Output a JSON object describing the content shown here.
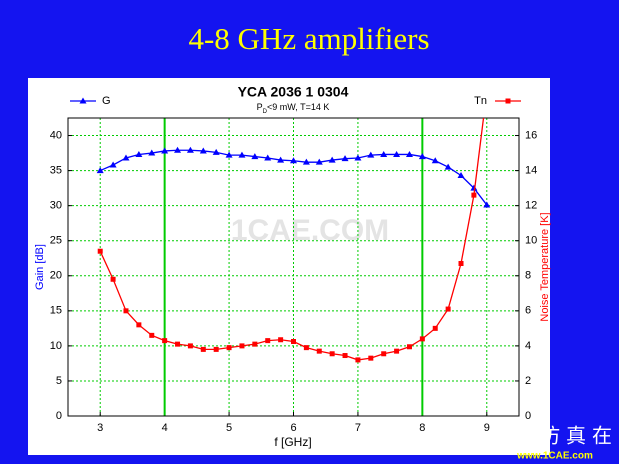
{
  "slide_title": "4-8 GHz amplifiers",
  "watermark": "1CAE.COM",
  "footer_brand": "仿真在线",
  "footer_url": "www.1CAE.com",
  "chart_data": {
    "type": "line",
    "title": "YCA 2036 1 0304",
    "subtitle": {
      "parts": [
        "P",
        "D",
        "<9 mW, T=14 K"
      ]
    },
    "xlabel": "f [GHz]",
    "ylabel": "Gain [dB]",
    "y2label": "Noise Temperature [K]",
    "x": [
      3,
      3.2,
      3.4,
      3.6,
      3.8,
      4,
      4.2,
      4.4,
      4.6,
      4.8,
      5,
      5.2,
      5.4,
      5.6,
      5.8,
      6,
      6.2,
      6.4,
      6.6,
      6.8,
      7,
      7.2,
      7.4,
      7.6,
      7.8,
      8,
      8.2,
      8.4,
      8.6,
      8.8,
      9
    ],
    "series": [
      {
        "name": "G",
        "color": "#0000ff",
        "marker": "triangle",
        "axis": "y",
        "values": [
          35,
          35.8,
          36.8,
          37.3,
          37.5,
          37.8,
          37.9,
          37.9,
          37.8,
          37.6,
          37.2,
          37.2,
          37.0,
          36.8,
          36.5,
          36.4,
          36.2,
          36.2,
          36.5,
          36.7,
          36.8,
          37.2,
          37.3,
          37.3,
          37.3,
          37.0,
          36.4,
          35.5,
          34.3,
          32.5,
          30.1
        ]
      },
      {
        "name": "Tn",
        "color": "#ff0000",
        "marker": "square",
        "axis": "y2",
        "values": [
          9.4,
          7.8,
          6.0,
          5.2,
          4.6,
          4.3,
          4.1,
          4.0,
          3.8,
          3.8,
          3.9,
          4.0,
          4.1,
          4.3,
          4.35,
          4.25,
          3.9,
          3.7,
          3.55,
          3.45,
          3.2,
          3.3,
          3.55,
          3.7,
          3.95,
          4.4,
          5.0,
          6.1,
          8.7,
          12.6,
          18.5
        ]
      }
    ],
    "xlim": [
      2.5,
      9.5
    ],
    "xticks": [
      3,
      4,
      5,
      6,
      7,
      8,
      9
    ],
    "ylim": [
      0,
      42.5
    ],
    "yticks": [
      0,
      5,
      10,
      15,
      20,
      25,
      30,
      35,
      40
    ],
    "y2lim": [
      0,
      17
    ],
    "y2ticks": [
      0,
      2,
      4,
      6,
      8,
      10,
      12,
      14,
      16
    ],
    "grid": true,
    "grid_color": "#00cc00",
    "highlight_x": [
      4,
      8
    ],
    "highlight_color": "#00cc00"
  }
}
